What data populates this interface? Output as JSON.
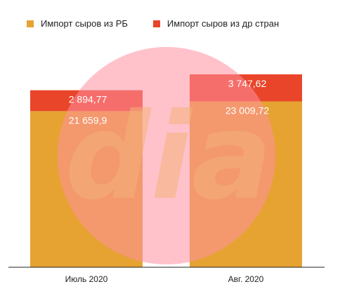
{
  "colors": {
    "series1": "#E6A332",
    "series2": "#E9452A",
    "watermark_circle": "#FF8FA0",
    "watermark_text": "#F3B27A",
    "axis": "#222222",
    "label": "#ffffff"
  },
  "watermark": {
    "text": "dia"
  },
  "chart_data": {
    "type": "bar",
    "stacked": true,
    "categories": [
      "Июль 2020",
      "Авг. 2020"
    ],
    "series": [
      {
        "name": "Импорт сыров из РБ",
        "values": [
          21659.9,
          23009.72
        ],
        "labels": [
          "21 659,9",
          "23 009,72"
        ]
      },
      {
        "name": "Импорт сыров из др стран",
        "values": [
          2894.77,
          3747.62
        ],
        "labels": [
          "2 894,77",
          "3 747,62"
        ]
      }
    ],
    "legend_position": "top-left",
    "grid": false
  }
}
